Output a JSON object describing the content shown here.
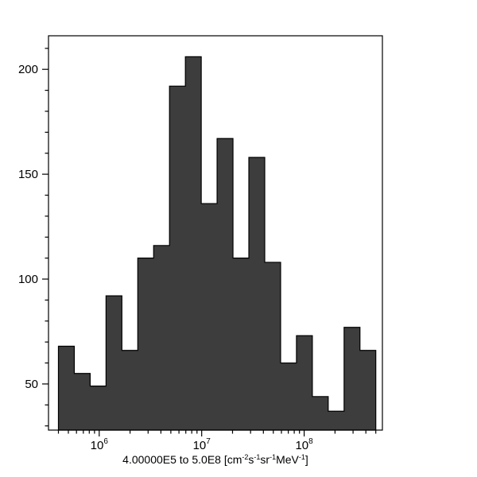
{
  "figure": {
    "background": "#ffffff",
    "title": ""
  },
  "chart_data": {
    "type": "bar",
    "subtype": "histogram",
    "title": "",
    "xlabel": "4.00000E5 to 5.0E8 [cm⁻²s⁻¹sr⁻¹MeV⁻¹]",
    "ylabel": "",
    "x_scale": "log",
    "grid": false,
    "legend": "none",
    "xlim": [
      320000,
      580000000
    ],
    "ylim": [
      28,
      216
    ],
    "bin_edges": [
      400000,
      571400,
      816100,
      1166000,
      1665000,
      2379000,
      3398000,
      4854000,
      6934000,
      9901000,
      14140000,
      20200000,
      28860000,
      41230000,
      58900000,
      84130000,
      120200000,
      171700000,
      245300000,
      350300000,
      500000000
    ],
    "counts": [
      68,
      55,
      49,
      92,
      66,
      110,
      116,
      192,
      206,
      136,
      167,
      110,
      158,
      108,
      60,
      73,
      44,
      37,
      77,
      66
    ],
    "y_major_ticks": [
      {
        "value": 50,
        "label": "50"
      },
      {
        "value": 100,
        "label": "100"
      },
      {
        "value": 150,
        "label": "150"
      },
      {
        "value": 200,
        "label": "200"
      }
    ],
    "y_minor_ticks": {
      "start": 30,
      "end": 210,
      "step": 10
    },
    "x_major_ticks": [
      {
        "value": 1000000,
        "base": "10",
        "exp": "6"
      },
      {
        "value": 10000000,
        "base": "10",
        "exp": "7"
      },
      {
        "value": 100000000,
        "base": "10",
        "exp": "8"
      }
    ],
    "xlabel_parts": [
      {
        "text": "4.00000E5 to 5.0E8 [cm"
      },
      {
        "sup": "-2"
      },
      {
        "text": "s"
      },
      {
        "sup": "-1"
      },
      {
        "text": "sr"
      },
      {
        "sup": "-1"
      },
      {
        "text": "MeV"
      },
      {
        "sup": "-1"
      },
      {
        "text": "]"
      }
    ],
    "colors": {
      "bar_fill": "#3d3d3d",
      "bar_edge": "#000000",
      "axis": "#000000",
      "text": "#000000",
      "background": "#ffffff"
    }
  }
}
